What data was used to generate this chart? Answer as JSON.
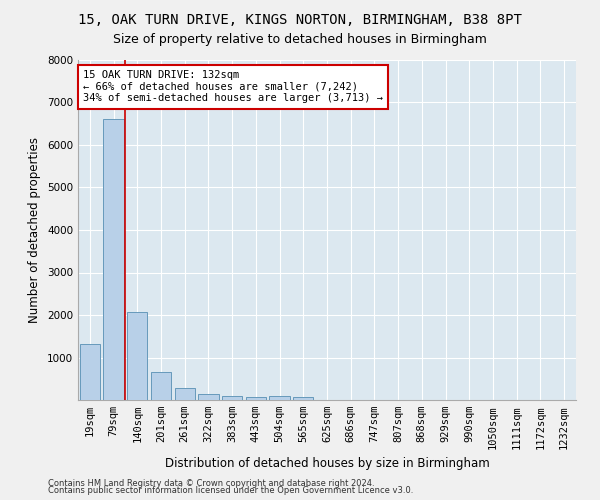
{
  "title1": "15, OAK TURN DRIVE, KINGS NORTON, BIRMINGHAM, B38 8PT",
  "title2": "Size of property relative to detached houses in Birmingham",
  "xlabel": "Distribution of detached houses by size in Birmingham",
  "ylabel": "Number of detached properties",
  "footer1": "Contains HM Land Registry data © Crown copyright and database right 2024.",
  "footer2": "Contains public sector information licensed under the Open Government Licence v3.0.",
  "bar_labels": [
    "19sqm",
    "79sqm",
    "140sqm",
    "201sqm",
    "261sqm",
    "322sqm",
    "383sqm",
    "443sqm",
    "504sqm",
    "565sqm",
    "625sqm",
    "686sqm",
    "747sqm",
    "807sqm",
    "868sqm",
    "929sqm",
    "990sqm",
    "1050sqm",
    "1111sqm",
    "1172sqm",
    "1232sqm"
  ],
  "bar_values": [
    1320,
    6600,
    2080,
    660,
    290,
    140,
    90,
    70,
    90,
    70,
    0,
    0,
    0,
    0,
    0,
    0,
    0,
    0,
    0,
    0,
    0
  ],
  "bar_color": "#b8d0e8",
  "bar_edge_color": "#6699bb",
  "vline_color": "#cc0000",
  "vline_x": 1.5,
  "annotation_line1": "15 OAK TURN DRIVE: 132sqm",
  "annotation_line2": "← 66% of detached houses are smaller (7,242)",
  "annotation_line3": "34% of semi-detached houses are larger (3,713) →",
  "annotation_box_color": "#ffffff",
  "annotation_box_edge": "#cc0000",
  "ylim": [
    0,
    8000
  ],
  "yticks": [
    0,
    1000,
    2000,
    3000,
    4000,
    5000,
    6000,
    7000,
    8000
  ],
  "bg_color": "#dce8f0",
  "grid_color": "#ffffff",
  "fig_bg_color": "#f0f0f0",
  "title1_fontsize": 10,
  "title2_fontsize": 9,
  "axis_label_fontsize": 8.5,
  "tick_fontsize": 7.5,
  "footer_fontsize": 6,
  "annotation_fontsize": 7.5
}
